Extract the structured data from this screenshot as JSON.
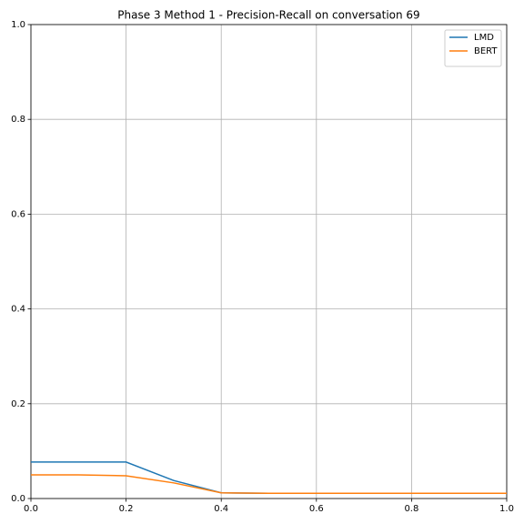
{
  "chart_data": {
    "type": "line",
    "title": "Phase 3 Method 1 - Precision-Recall on conversation 69",
    "x": [
      0,
      0.1,
      0.2,
      0.3,
      0.4,
      0.5,
      0.6,
      0.7,
      0.8,
      0.9,
      1.0
    ],
    "series": [
      {
        "name": "LMD",
        "color": "#1f77b4",
        "values": [
          0.077,
          0.077,
          0.077,
          0.038,
          0.012,
          0.011,
          0.011,
          0.011,
          0.011,
          0.011,
          0.011
        ]
      },
      {
        "name": "BERT",
        "color": "#ff7f0e",
        "values": [
          0.05,
          0.05,
          0.048,
          0.033,
          0.012,
          0.011,
          0.011,
          0.011,
          0.011,
          0.011,
          0.011
        ]
      }
    ],
    "xlim": [
      0,
      1
    ],
    "xticks": [
      {
        "value": 0,
        "label": "0.0"
      },
      0.2,
      0.4,
      0.6,
      0.8,
      {
        "value": 1,
        "label": "1.0"
      }
    ],
    "ylim": [
      0,
      1
    ],
    "yticks": [
      {
        "value": 0,
        "label": "0.0"
      },
      0.2,
      0.4,
      0.6,
      0.8,
      {
        "value": 1,
        "label": "1.0"
      }
    ],
    "grid": true,
    "legend": "upper right"
  }
}
